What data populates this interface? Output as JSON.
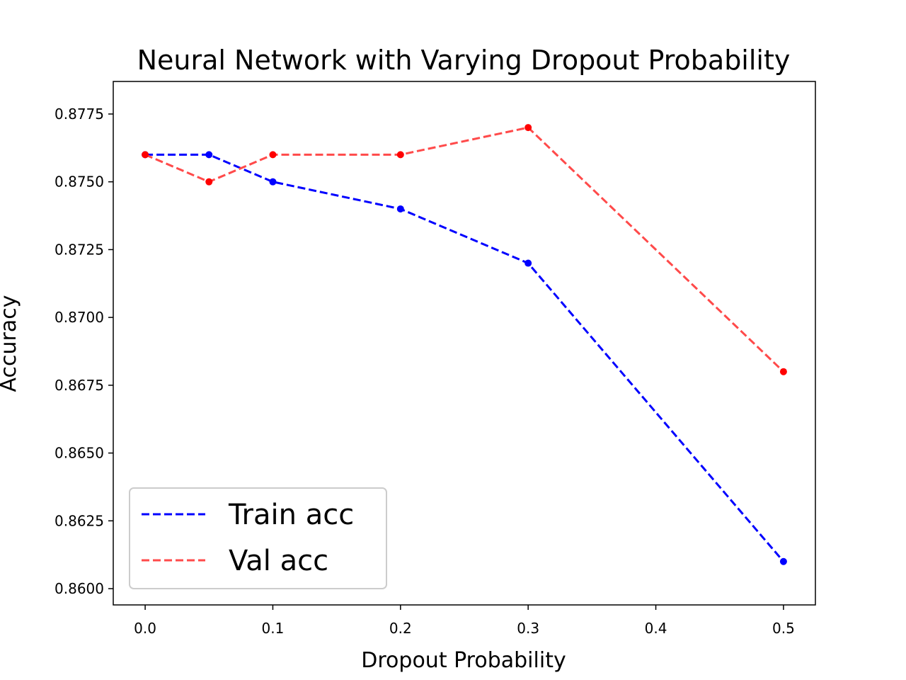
{
  "chart_data": {
    "type": "line",
    "title": "Neural Network with Varying Dropout Probability",
    "xlabel": "Dropout Probability",
    "ylabel": "Accuracy",
    "xlim": [
      -0.025,
      0.525
    ],
    "ylim": [
      0.8594,
      0.8787
    ],
    "xticks": [
      0.0,
      0.1,
      0.2,
      0.3,
      0.4,
      0.5
    ],
    "xtick_labels": [
      "0.0",
      "0.1",
      "0.2",
      "0.3",
      "0.4",
      "0.5"
    ],
    "yticks": [
      0.86,
      0.8625,
      0.865,
      0.8675,
      0.87,
      0.8725,
      0.875,
      0.8775
    ],
    "ytick_labels": [
      "0.8600",
      "0.8625",
      "0.8650",
      "0.8675",
      "0.8700",
      "0.8725",
      "0.8750",
      "0.8775"
    ],
    "grid": false,
    "legend_position": "bottom-left",
    "series": [
      {
        "name": "Train acc",
        "color": "#0000ff",
        "line_style": "dashed",
        "x": [
          0.0,
          0.05,
          0.1,
          0.2,
          0.3,
          0.5
        ],
        "y": [
          0.876,
          0.876,
          0.875,
          0.874,
          0.872,
          0.861
        ]
      },
      {
        "name": "Val acc",
        "color": "#ff4a4a",
        "marker_color": "#ff0000",
        "line_style": "dashed",
        "x": [
          0.0,
          0.05,
          0.1,
          0.2,
          0.3,
          0.5
        ],
        "y": [
          0.876,
          0.875,
          0.876,
          0.876,
          0.877,
          0.868
        ]
      }
    ]
  }
}
